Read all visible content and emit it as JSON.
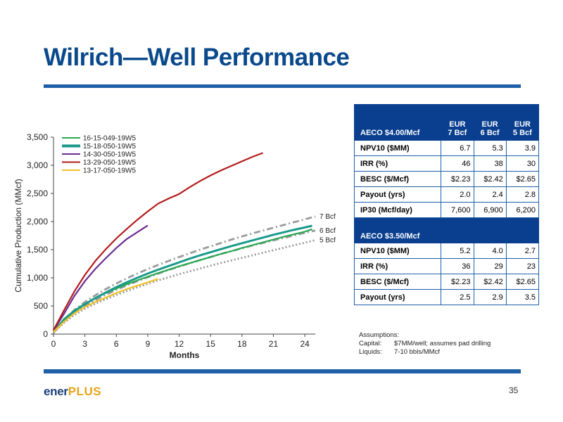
{
  "title": "Wilrich—Well Performance",
  "chart_data": {
    "type": "line",
    "xlabel": "Months",
    "ylabel": "Cumulative Production (MMcf)",
    "xlim": [
      0,
      25
    ],
    "ylim": [
      0,
      3500
    ],
    "xticks": [
      0,
      3,
      6,
      9,
      12,
      15,
      18,
      21,
      24
    ],
    "yticks": [
      0,
      500,
      1000,
      1500,
      2000,
      2500,
      3000,
      3500
    ],
    "ytick_labels": [
      "0",
      "500",
      "1,000",
      "1,500",
      "2,000",
      "2,500",
      "3,000",
      "3,500"
    ],
    "grid": false,
    "legend_position": "top-left",
    "series": [
      {
        "name": "16-15-049-19W5",
        "color": "#27a851",
        "x": [
          0,
          1,
          2,
          3,
          4,
          5,
          6,
          7,
          8,
          9,
          10,
          11,
          12,
          13,
          14,
          15,
          16,
          17,
          18,
          19,
          20,
          21,
          22,
          23,
          24,
          24.7
        ],
        "y": [
          40,
          270,
          420,
          540,
          640,
          730,
          810,
          885,
          955,
          1020,
          1085,
          1145,
          1205,
          1260,
          1315,
          1370,
          1425,
          1475,
          1530,
          1580,
          1630,
          1680,
          1730,
          1775,
          1820,
          1865
        ]
      },
      {
        "name": "15-18-050-19W5",
        "color": "#1b9a8a",
        "x": [
          0,
          1,
          2,
          3,
          4,
          5,
          6,
          7,
          8,
          9,
          10,
          11,
          12,
          13,
          14,
          15,
          16,
          17,
          18,
          19,
          20,
          21,
          22,
          23,
          24,
          24.7
        ],
        "y": [
          50,
          250,
          410,
          530,
          640,
          740,
          835,
          920,
          1000,
          1075,
          1145,
          1210,
          1275,
          1340,
          1400,
          1455,
          1510,
          1565,
          1615,
          1665,
          1715,
          1765,
          1810,
          1855,
          1895,
          1925
        ]
      },
      {
        "name": "14-30-050-19W5",
        "color": "#6b2c91",
        "x": [
          0,
          1,
          2,
          3,
          4,
          5,
          6,
          7,
          8,
          9
        ],
        "y": [
          60,
          360,
          680,
          940,
          1160,
          1350,
          1530,
          1690,
          1810,
          1930
        ]
      },
      {
        "name": "13-29-050-19W5",
        "color": "#b31b1b",
        "x": [
          0,
          1,
          2,
          3,
          4,
          5,
          6,
          7,
          8,
          9,
          10,
          11,
          12,
          13,
          14,
          15,
          16,
          17,
          18,
          19,
          20
        ],
        "y": [
          70,
          420,
          760,
          1050,
          1300,
          1510,
          1700,
          1870,
          2030,
          2180,
          2320,
          2410,
          2490,
          2610,
          2720,
          2820,
          2910,
          2990,
          3070,
          3150,
          3220
        ]
      },
      {
        "name": "13-17-050-19W5",
        "color": "#f2c029",
        "x": [
          0,
          1,
          2,
          3,
          4,
          5,
          6,
          7,
          8,
          9,
          10
        ],
        "y": [
          40,
          220,
          370,
          480,
          570,
          650,
          730,
          800,
          860,
          920,
          980
        ]
      }
    ],
    "type_curves": [
      {
        "label": "7 Bcf",
        "color": "#9a9a9a",
        "style": "dash-dot",
        "x": [
          0,
          1,
          2,
          3,
          4,
          5,
          6,
          7,
          8,
          9,
          10,
          11,
          12,
          13,
          14,
          15,
          16,
          17,
          18,
          19,
          20,
          21,
          22,
          23,
          24,
          25
        ],
        "y": [
          30,
          250,
          430,
          570,
          690,
          800,
          900,
          990,
          1075,
          1155,
          1230,
          1300,
          1370,
          1435,
          1500,
          1560,
          1620,
          1680,
          1735,
          1790,
          1840,
          1890,
          1940,
          1990,
          2040,
          2090
        ]
      },
      {
        "label": "6 Bcf",
        "color": "#9a9a9a",
        "style": "dash-dot",
        "x": [
          0,
          1,
          2,
          3,
          4,
          5,
          6,
          7,
          8,
          9,
          10,
          11,
          12,
          13,
          14,
          15,
          16,
          17,
          18,
          19,
          20,
          21,
          22,
          23,
          24,
          25
        ],
        "y": [
          30,
          220,
          380,
          500,
          605,
          700,
          785,
          865,
          940,
          1010,
          1075,
          1140,
          1200,
          1260,
          1315,
          1370,
          1425,
          1475,
          1525,
          1575,
          1620,
          1665,
          1710,
          1755,
          1800,
          1840
        ]
      },
      {
        "label": "5 Bcf",
        "color": "#9a9a9a",
        "style": "dotted",
        "x": [
          0,
          1,
          2,
          3,
          4,
          5,
          6,
          7,
          8,
          9,
          10,
          11,
          12,
          13,
          14,
          15,
          16,
          17,
          18,
          19,
          20,
          21,
          22,
          23,
          24,
          25
        ],
        "y": [
          25,
          200,
          340,
          450,
          540,
          620,
          695,
          765,
          830,
          895,
          955,
          1010,
          1065,
          1115,
          1165,
          1215,
          1265,
          1310,
          1355,
          1400,
          1445,
          1490,
          1535,
          1580,
          1625,
          1670
        ]
      }
    ]
  },
  "table1": {
    "header": {
      "label": "AECO $4.00/Mcf",
      "cols": [
        "EUR\n7 Bcf",
        "EUR\n6 Bcf",
        "EUR\n5 Bcf"
      ]
    },
    "rows": [
      {
        "label": "NPV10 ($MM)",
        "values": [
          "6.7",
          "5.3",
          "3.9"
        ]
      },
      {
        "label": "IRR (%)",
        "values": [
          "46",
          "38",
          "30"
        ]
      },
      {
        "label": "BESC ($/Mcf)",
        "values": [
          "$2.23",
          "$2.42",
          "$2.65"
        ]
      },
      {
        "label": "Payout (yrs)",
        "values": [
          "2.0",
          "2.4",
          "2.8"
        ]
      },
      {
        "label": "IP30 (Mcf/day)",
        "values": [
          "7,600",
          "6,900",
          "6,200"
        ]
      }
    ]
  },
  "table2": {
    "header": {
      "label": "AECO $3.50/Mcf"
    },
    "rows": [
      {
        "label": "NPV10 ($MM)",
        "values": [
          "5.2",
          "4.0",
          "2.7"
        ]
      },
      {
        "label": "IRR (%)",
        "values": [
          "36",
          "29",
          "23"
        ]
      },
      {
        "label": "BESC ($/Mcf)",
        "values": [
          "$2.23",
          "$2.42",
          "$2.65"
        ]
      },
      {
        "label": "Payout (yrs)",
        "values": [
          "2.5",
          "2.9",
          "3.5"
        ]
      }
    ]
  },
  "assumptions": {
    "title": "Assumptions:",
    "items": [
      {
        "key": "Capital:",
        "value": "$7MM/well; assumes pad drilling"
      },
      {
        "key": "Liquids:",
        "value": "7-10 bbls/MMcf"
      }
    ]
  },
  "footer": {
    "logo_main": "ener",
    "logo_accent": "PLUS",
    "page_number": "35"
  },
  "colors": {
    "title": "#0a4a8c",
    "accent_bar": "#1f5fa8",
    "table_header": "#0a3f8f",
    "logo_plus": "#e8a317"
  }
}
